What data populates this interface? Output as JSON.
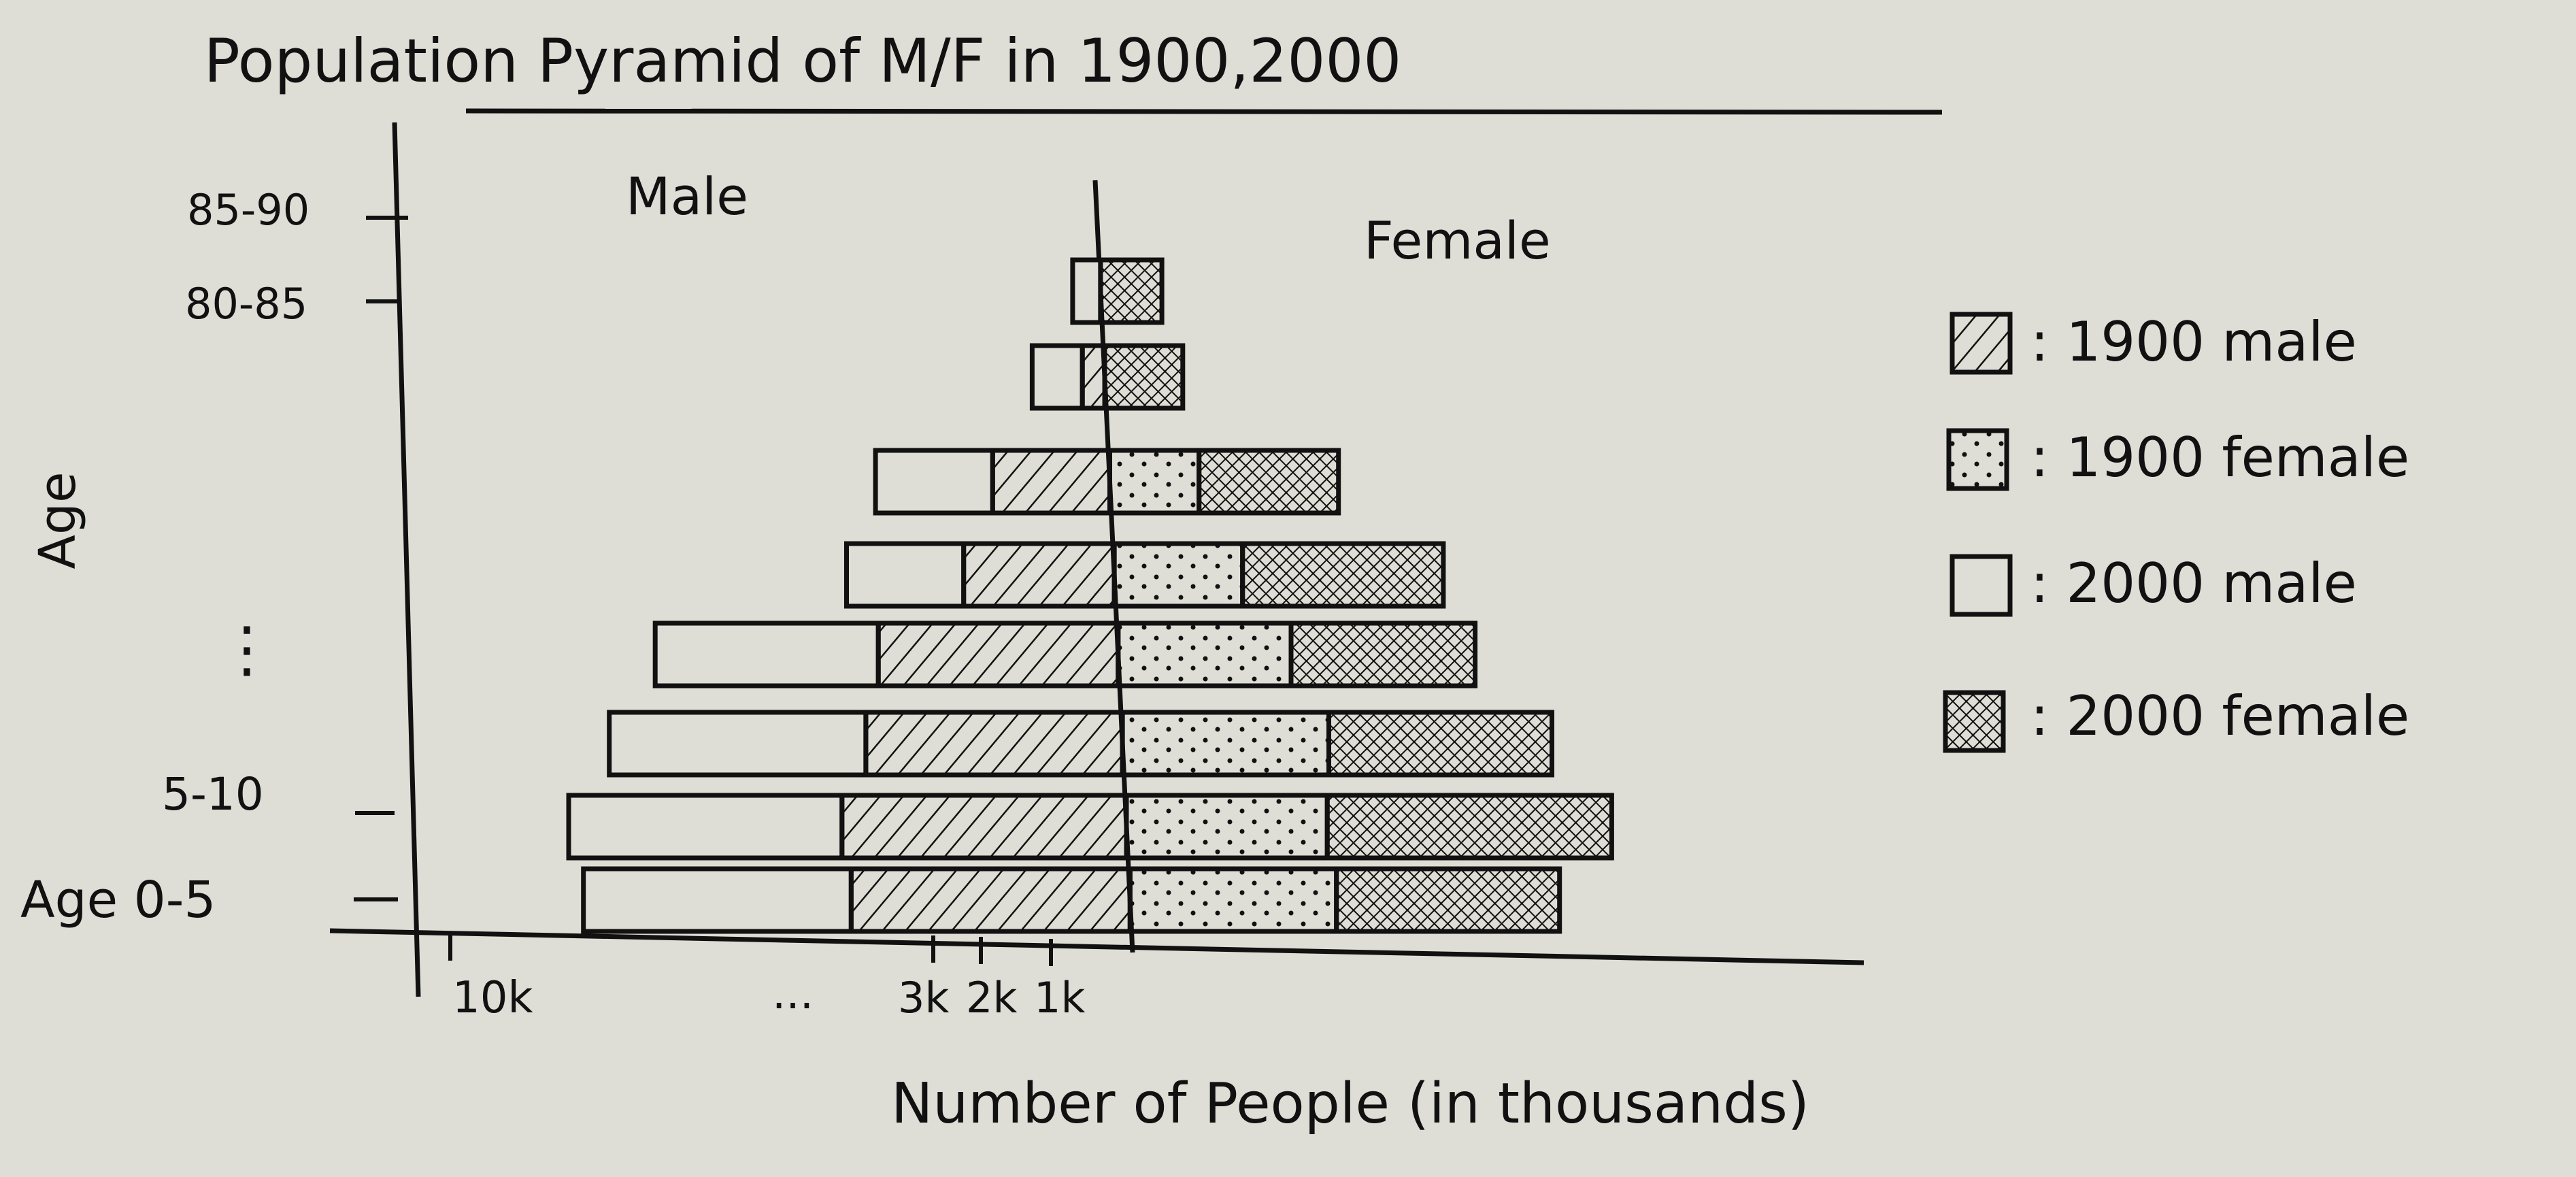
{
  "chart_data": {
    "type": "bar",
    "subtype": "population-pyramid",
    "title": "Population Pyramid of M/F in 1900,2000",
    "xlabel": "Number of People (in thousands)",
    "ylabel": "Age",
    "side_labels": {
      "left": "Male",
      "right": "Female"
    },
    "age_tick_labels": [
      "Age 0-5",
      "5-10",
      "⋮",
      "80-85",
      "85-90"
    ],
    "x_tick_labels": [
      "10k",
      "...",
      "3k",
      "2k",
      "1k"
    ],
    "legend_position": "right",
    "legend": [
      {
        "key": "1900_male",
        "label": ": 1900 male",
        "pattern": "hatch"
      },
      {
        "key": "1900_female",
        "label": ": 1900 female",
        "pattern": "dots"
      },
      {
        "key": "2000_male",
        "label": ": 2000 male",
        "pattern": "empty"
      },
      {
        "key": "2000_female",
        "label": ": 2000 female",
        "pattern": "crosshatch"
      }
    ],
    "series": [
      {
        "name": "1900 male",
        "values": [
          5.0,
          5.1,
          4.6,
          4.3,
          2.7,
          2.1,
          0.4,
          0.0
        ]
      },
      {
        "name": "1900 female",
        "values": [
          3.7,
          3.6,
          3.7,
          3.1,
          2.3,
          1.6,
          0.0,
          0.0
        ]
      },
      {
        "name": "2000 male",
        "values": [
          4.8,
          4.9,
          4.6,
          4.0,
          2.1,
          2.1,
          0.9,
          0.5
        ]
      },
      {
        "name": "2000 female",
        "values": [
          4.0,
          5.1,
          4.0,
          3.3,
          3.6,
          2.5,
          1.4,
          1.1
        ]
      }
    ],
    "grid": false
  },
  "colors": {
    "ink": "#111111",
    "paper": "#deded6"
  }
}
